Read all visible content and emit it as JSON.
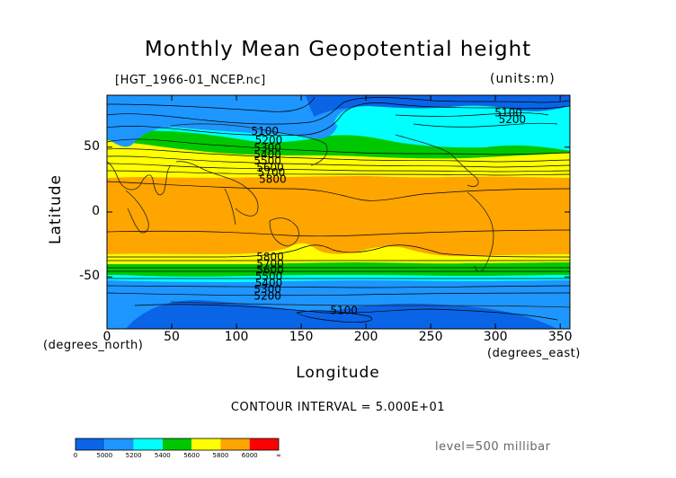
{
  "chart_data": {
    "type": "contour",
    "title": "Monthly Mean Geopotential height",
    "source_label": "[HGT_1966-01_NCEP.nc]",
    "units_label": "(units:m)",
    "xlabel": "Longitude",
    "ylabel": "Latitude",
    "x_unit_label": "(degrees_east)",
    "y_unit_label": "(degrees_north)",
    "xlim": [
      0,
      357.5
    ],
    "ylim": [
      -90,
      90
    ],
    "x_ticks": [
      0,
      50,
      100,
      150,
      200,
      250,
      300,
      350
    ],
    "y_ticks": [
      50,
      0,
      -50
    ],
    "contour_interval_text": "CONTOUR INTERVAL = 5.000E+01",
    "level_text": "level=500 millibar",
    "contour_labels": [
      {
        "text": "5100",
        "lon": 122,
        "lat": 62
      },
      {
        "text": "5200",
        "lon": 125,
        "lat": 55
      },
      {
        "text": "5300",
        "lon": 124,
        "lat": 49
      },
      {
        "text": "5400",
        "lon": 124,
        "lat": 44
      },
      {
        "text": "5500",
        "lon": 124,
        "lat": 39
      },
      {
        "text": "5600",
        "lon": 126,
        "lat": 34
      },
      {
        "text": "5700",
        "lon": 127,
        "lat": 30
      },
      {
        "text": "5800",
        "lon": 128,
        "lat": 25
      },
      {
        "text": "5800",
        "lon": 126,
        "lat": -35
      },
      {
        "text": "5700",
        "lon": 126,
        "lat": -40
      },
      {
        "text": "5600",
        "lon": 126,
        "lat": -45
      },
      {
        "text": "5500",
        "lon": 125,
        "lat": -50
      },
      {
        "text": "5400",
        "lon": 125,
        "lat": -55
      },
      {
        "text": "5300",
        "lon": 124,
        "lat": -60
      },
      {
        "text": "5200",
        "lon": 124,
        "lat": -65
      },
      {
        "text": "5100",
        "lon": 183,
        "lat": -76
      },
      {
        "text": "5100",
        "lon": 310,
        "lat": 76
      },
      {
        "text": "5200",
        "lon": 313,
        "lat": 71
      }
    ],
    "colorbar": {
      "levels": [
        "0",
        "5000",
        "5200",
        "5400",
        "5600",
        "5800",
        "6000",
        "∞"
      ],
      "colors": [
        "#0a64e6",
        "#1e96ff",
        "#00ffff",
        "#00c800",
        "#ffff00",
        "#ffa500",
        "#ff0000"
      ]
    },
    "fill_colors": {
      "below_5200": "#1e96ff",
      "band_5200_5400": "#00ffff",
      "band_5400_5600": "#00c800",
      "band_5600_5800": "#ffff00",
      "above_5800": "#ffa500",
      "low_core": "#0a64e6"
    }
  }
}
